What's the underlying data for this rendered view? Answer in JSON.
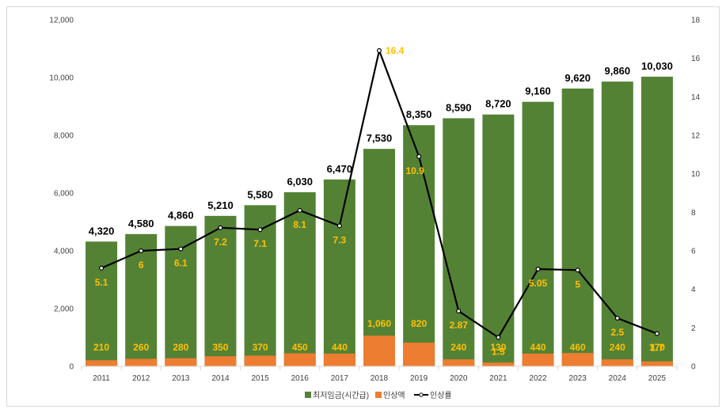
{
  "chart_data": {
    "type": "bar",
    "title": "",
    "categories": [
      "2011",
      "2012",
      "2013",
      "2014",
      "2015",
      "2016",
      "2017",
      "2018",
      "2019",
      "2020",
      "2021",
      "2022",
      "2023",
      "2024",
      "2025"
    ],
    "series": [
      {
        "name": "최저임금(시간급)",
        "kind": "bar",
        "axis": "left",
        "color": "#548235",
        "values": [
          4320,
          4580,
          4860,
          5210,
          5580,
          6030,
          6470,
          7530,
          8350,
          8590,
          8720,
          9160,
          9620,
          9860,
          10030
        ],
        "labels": [
          "4,320",
          "4,580",
          "4,860",
          "5,210",
          "5,580",
          "6,030",
          "6,470",
          "7,530",
          "8,350",
          "8,590",
          "8,720",
          "9,160",
          "9,620",
          "9,860",
          "10,030"
        ]
      },
      {
        "name": "인상액",
        "kind": "bar",
        "axis": "left",
        "color": "#ED7D31",
        "values": [
          210,
          260,
          280,
          350,
          370,
          450,
          440,
          1060,
          820,
          240,
          130,
          440,
          460,
          240,
          170
        ],
        "labels": [
          "210",
          "260",
          "280",
          "350",
          "370",
          "450",
          "440",
          "1,060",
          "820",
          "240",
          "130",
          "440",
          "460",
          "240",
          "170"
        ]
      },
      {
        "name": "인상률",
        "kind": "line",
        "axis": "right",
        "color": "#000000",
        "values": [
          5.1,
          6,
          6.1,
          7.2,
          7.1,
          8.1,
          7.3,
          16.4,
          10.9,
          2.87,
          1.5,
          5.05,
          5,
          2.5,
          1.7
        ],
        "labels": [
          "5.1",
          "6",
          "6.1",
          "7.2",
          "7.1",
          "8.1",
          "7.3",
          "16.4",
          "10.9",
          "2.87",
          "1.5",
          "5.05",
          "5",
          "2.5",
          "1.7"
        ]
      }
    ],
    "y_left": {
      "min": 0,
      "max": 12000,
      "ticks": [
        0,
        2000,
        4000,
        6000,
        8000,
        10000,
        12000
      ],
      "tick_labels": [
        "0",
        "2,000",
        "4,000",
        "6,000",
        "8,000",
        "10,000",
        "12,000"
      ]
    },
    "y_right": {
      "min": 0,
      "max": 18,
      "ticks": [
        0,
        2,
        4,
        6,
        8,
        10,
        12,
        14,
        16,
        18
      ],
      "tick_labels": [
        "0",
        "2",
        "4",
        "6",
        "8",
        "10",
        "12",
        "14",
        "16",
        "18"
      ]
    },
    "legend_position": "bottom",
    "label_color": "#FFC000",
    "grid": false
  }
}
